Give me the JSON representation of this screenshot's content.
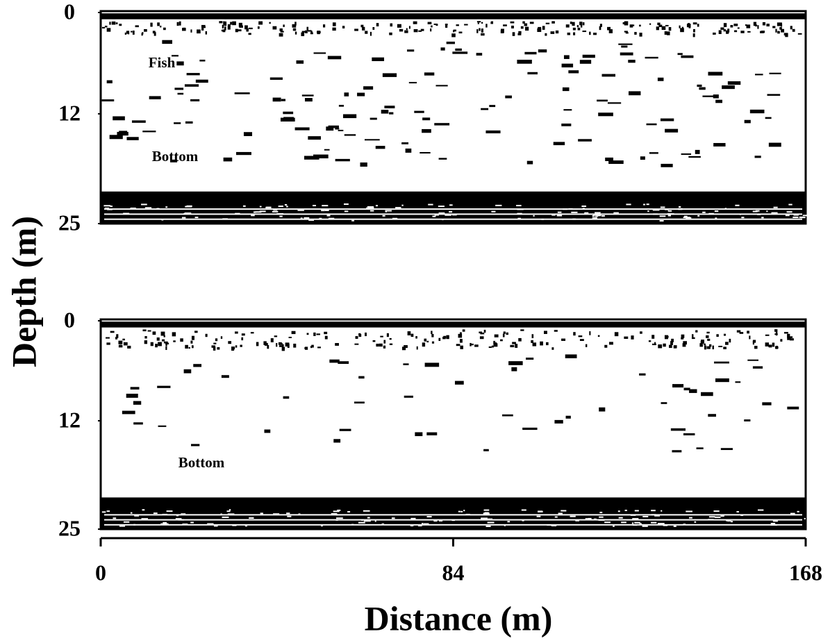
{
  "chart_data": [
    {
      "type": "echogram",
      "ylabel": "Depth (m)",
      "ylim": [
        0,
        25
      ],
      "yticks": [
        0,
        12,
        25
      ],
      "annotations": [
        "Fish",
        "Bottom"
      ]
    },
    {
      "type": "echogram",
      "ylim": [
        0,
        25
      ],
      "yticks": [
        0,
        12,
        25
      ],
      "annotations": [
        "Bottom"
      ],
      "xlabel": "Distance (m)",
      "xlim": [
        0,
        168
      ],
      "xticks": [
        0,
        84,
        168
      ]
    }
  ]
}
